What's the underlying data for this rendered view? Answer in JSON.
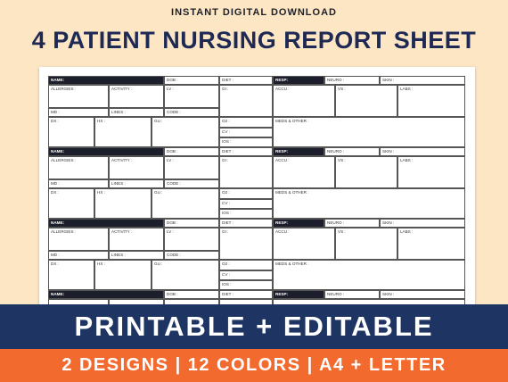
{
  "header": {
    "subtitle": "INSTANT DIGITAL DOWNLOAD",
    "title": "4 PATIENT NURSING REPORT SHEET"
  },
  "sheet": {
    "labels": {
      "name": "NAME:",
      "dob": "DOB :",
      "diet": "DIET :",
      "resp": "RESP:",
      "neuro": "NEURO :",
      "skin": "SKIN :",
      "allergies": "ALLERGIES :",
      "activity": "ACTIVITY :",
      "lv": "LV :",
      "gi": "GI :",
      "accu": "ACCU :",
      "vs": "VS :",
      "labs": "LABS :",
      "md": "MD :",
      "lines": "LINES :",
      "code": "CODE :",
      "dx": "DX :",
      "hx": "HX :",
      "gu": "GU :",
      "o2": "O2 :",
      "meds": "MEDS & OTHER :",
      "cv": "CV :",
      "ios": "IOS :"
    }
  },
  "banners": {
    "primary": "PRINTABLE + EDITABLE",
    "secondary": "2 DESIGNS | 12 COLORS | A4 + LETTER"
  }
}
